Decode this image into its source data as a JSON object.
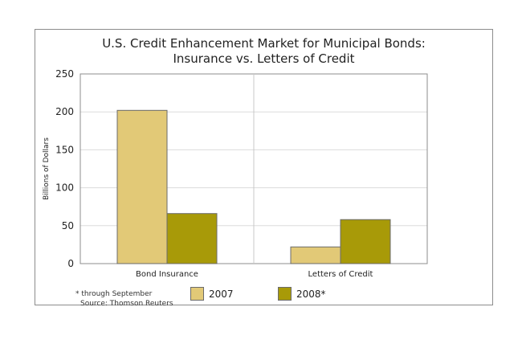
{
  "chart_data": {
    "type": "bar",
    "title": "U.S. Credit Enhancement Market for Municipal Bonds:",
    "subtitle": "Insurance vs. Letters of Credit",
    "ylabel": "Billions of Dollars",
    "xlabel": "",
    "ylim": [
      0,
      250
    ],
    "yticks": [
      0,
      50,
      100,
      150,
      200,
      250
    ],
    "categories": [
      "Bond Insurance",
      "Letters of Credit"
    ],
    "series": [
      {
        "name": "2007",
        "values": [
          202,
          22
        ],
        "color": "#e2c977"
      },
      {
        "name": "2008*",
        "values": [
          66,
          58
        ],
        "color": "#a89a08"
      }
    ],
    "grid": true,
    "legend_position": "bottom"
  },
  "footnote": "* through September",
  "source": "Source: Thomson Reuters"
}
